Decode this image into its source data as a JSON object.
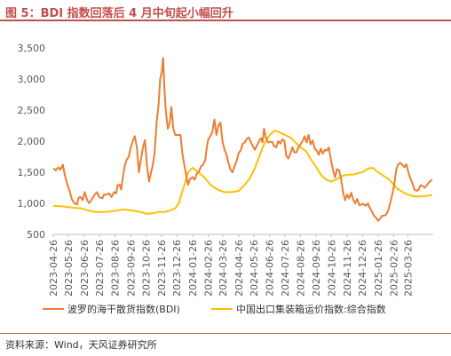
{
  "figure": {
    "title": "图 5：BDI 指数回落后 4 月中旬起小幅回升",
    "source": "资料来源：Wind，天风证券研究所"
  },
  "chart_data": {
    "type": "line",
    "ylim": [
      500,
      3500
    ],
    "yticks": [
      500,
      1000,
      1500,
      2000,
      2500,
      3000,
      3500
    ],
    "ytick_labels": [
      "500",
      "1,000",
      "1,500",
      "2,000",
      "2,500",
      "3,000",
      "3,500"
    ],
    "x_domain": [
      "2023-04-26",
      "2025-05-15"
    ],
    "xtick_labels": [
      "2023-04-26",
      "2023-05-26",
      "2023-06-26",
      "2023-07-26",
      "2023-08-26",
      "2023-09-26",
      "2023-10-26",
      "2023-11-26",
      "2023-12-26",
      "2024-01-26",
      "2024-02-26",
      "2024-03-26",
      "2024-04-26",
      "2024-05-26",
      "2024-06-26",
      "2024-07-26",
      "2024-08-26",
      "2024-09-26",
      "2024-10-26",
      "2024-11-26",
      "2024-12-26",
      "2025-01-26",
      "2025-02-26",
      "2025-03-26"
    ],
    "grid": false,
    "legend_position": "bottom",
    "series": [
      {
        "name": "波罗的海干散货指数(BDI)",
        "color": "#ed7d31",
        "points": [
          [
            "2023-04-26",
            1560
          ],
          [
            "2023-05-01",
            1530
          ],
          [
            "2023-05-06",
            1580
          ],
          [
            "2023-05-10",
            1540
          ],
          [
            "2023-05-15",
            1620
          ],
          [
            "2023-05-19",
            1450
          ],
          [
            "2023-05-24",
            1300
          ],
          [
            "2023-05-29",
            1180
          ],
          [
            "2023-06-02",
            1060
          ],
          [
            "2023-06-07",
            1000
          ],
          [
            "2023-06-12",
            980
          ],
          [
            "2023-06-15",
            1090
          ],
          [
            "2023-06-19",
            1100
          ],
          [
            "2023-06-23",
            1050
          ],
          [
            "2023-06-27",
            1180
          ],
          [
            "2023-07-02",
            1050
          ],
          [
            "2023-07-06",
            1000
          ],
          [
            "2023-07-10",
            1050
          ],
          [
            "2023-07-16",
            1130
          ],
          [
            "2023-07-21",
            1180
          ],
          [
            "2023-07-26",
            1100
          ],
          [
            "2023-08-01",
            1080
          ],
          [
            "2023-08-04",
            1140
          ],
          [
            "2023-08-09",
            1140
          ],
          [
            "2023-08-14",
            1160
          ],
          [
            "2023-08-19",
            1100
          ],
          [
            "2023-08-24",
            1180
          ],
          [
            "2023-08-28",
            1160
          ],
          [
            "2023-08-31",
            1290
          ],
          [
            "2023-09-04",
            1300
          ],
          [
            "2023-09-07",
            1220
          ],
          [
            "2023-09-10",
            1400
          ],
          [
            "2023-09-14",
            1600
          ],
          [
            "2023-09-18",
            1700
          ],
          [
            "2023-09-22",
            1750
          ],
          [
            "2023-09-26",
            1900
          ],
          [
            "2023-09-30",
            2000
          ],
          [
            "2023-10-04",
            2080
          ],
          [
            "2023-10-08",
            1900
          ],
          [
            "2023-10-12",
            1500
          ],
          [
            "2023-10-16",
            1700
          ],
          [
            "2023-10-20",
            1900
          ],
          [
            "2023-10-24",
            2020
          ],
          [
            "2023-10-28",
            1600
          ],
          [
            "2023-11-01",
            1350
          ],
          [
            "2023-11-05",
            1500
          ],
          [
            "2023-11-08",
            1600
          ],
          [
            "2023-11-12",
            1800
          ],
          [
            "2023-11-16",
            2300
          ],
          [
            "2023-11-20",
            2600
          ],
          [
            "2023-11-23",
            3000
          ],
          [
            "2023-11-26",
            3100
          ],
          [
            "2023-11-29",
            3340
          ],
          [
            "2023-12-01",
            2900
          ],
          [
            "2023-12-04",
            2500
          ],
          [
            "2023-12-08",
            2200
          ],
          [
            "2023-12-12",
            2300
          ],
          [
            "2023-12-15",
            2550
          ],
          [
            "2023-12-19",
            2200
          ],
          [
            "2023-12-23",
            2100
          ],
          [
            "2023-12-29",
            2100
          ],
          [
            "2024-01-02",
            2100
          ],
          [
            "2024-01-06",
            1800
          ],
          [
            "2024-01-11",
            1550
          ],
          [
            "2024-01-17",
            1300
          ],
          [
            "2024-01-21",
            1390
          ],
          [
            "2024-01-26",
            1420
          ],
          [
            "2024-01-30",
            1380
          ],
          [
            "2024-02-03",
            1470
          ],
          [
            "2024-02-08",
            1520
          ],
          [
            "2024-02-12",
            1600
          ],
          [
            "2024-02-16",
            1620
          ],
          [
            "2024-02-20",
            1700
          ],
          [
            "2024-02-23",
            1900
          ],
          [
            "2024-02-26",
            2030
          ],
          [
            "2024-03-01",
            2080
          ],
          [
            "2024-03-05",
            2150
          ],
          [
            "2024-03-09",
            2350
          ],
          [
            "2024-03-13",
            2100
          ],
          [
            "2024-03-17",
            2250
          ],
          [
            "2024-03-21",
            2300
          ],
          [
            "2024-03-25",
            2000
          ],
          [
            "2024-03-29",
            1860
          ],
          [
            "2024-04-02",
            1780
          ],
          [
            "2024-04-06",
            1640
          ],
          [
            "2024-04-10",
            1540
          ],
          [
            "2024-04-14",
            1500
          ],
          [
            "2024-04-18",
            1600
          ],
          [
            "2024-04-22",
            1680
          ],
          [
            "2024-04-26",
            1810
          ],
          [
            "2024-04-30",
            1850
          ],
          [
            "2024-05-04",
            1960
          ],
          [
            "2024-05-08",
            1980
          ],
          [
            "2024-05-12",
            2040
          ],
          [
            "2024-05-16",
            2060
          ],
          [
            "2024-05-20",
            1980
          ],
          [
            "2024-05-24",
            1920
          ],
          [
            "2024-05-28",
            1860
          ],
          [
            "2024-06-01",
            1930
          ],
          [
            "2024-06-05",
            2000
          ],
          [
            "2024-06-09",
            2050
          ],
          [
            "2024-06-12",
            1980
          ],
          [
            "2024-06-15",
            2200
          ],
          [
            "2024-06-19",
            2050
          ],
          [
            "2024-06-23",
            1980
          ],
          [
            "2024-06-27",
            1990
          ],
          [
            "2024-07-01",
            1990
          ],
          [
            "2024-07-05",
            1920
          ],
          [
            "2024-07-09",
            1900
          ],
          [
            "2024-07-13",
            2000
          ],
          [
            "2024-07-17",
            1960
          ],
          [
            "2024-07-21",
            2030
          ],
          [
            "2024-07-25",
            2010
          ],
          [
            "2024-07-29",
            1760
          ],
          [
            "2024-08-02",
            1720
          ],
          [
            "2024-08-06",
            1800
          ],
          [
            "2024-08-10",
            1900
          ],
          [
            "2024-08-14",
            1820
          ],
          [
            "2024-08-18",
            1820
          ],
          [
            "2024-08-22",
            1900
          ],
          [
            "2024-08-26",
            1950
          ],
          [
            "2024-08-30",
            2000
          ],
          [
            "2024-09-03",
            2080
          ],
          [
            "2024-09-07",
            1980
          ],
          [
            "2024-09-11",
            2100
          ],
          [
            "2024-09-15",
            1950
          ],
          [
            "2024-09-19",
            2010
          ],
          [
            "2024-09-23",
            1880
          ],
          [
            "2024-09-27",
            1850
          ],
          [
            "2024-10-01",
            1780
          ],
          [
            "2024-10-05",
            1880
          ],
          [
            "2024-10-09",
            1800
          ],
          [
            "2024-10-13",
            1860
          ],
          [
            "2024-10-17",
            1850
          ],
          [
            "2024-10-21",
            1900
          ],
          [
            "2024-10-25",
            1700
          ],
          [
            "2024-10-29",
            1540
          ],
          [
            "2024-11-02",
            1420
          ],
          [
            "2024-11-06",
            1550
          ],
          [
            "2024-11-10",
            1530
          ],
          [
            "2024-11-14",
            1400
          ],
          [
            "2024-11-18",
            1180
          ],
          [
            "2024-11-22",
            1050
          ],
          [
            "2024-11-26",
            1140
          ],
          [
            "2024-11-30",
            1080
          ],
          [
            "2024-12-04",
            1170
          ],
          [
            "2024-12-08",
            1060
          ],
          [
            "2024-12-12",
            1000
          ],
          [
            "2024-12-16",
            1070
          ],
          [
            "2024-12-20",
            970
          ],
          [
            "2024-12-24",
            980
          ],
          [
            "2024-12-28",
            990
          ],
          [
            "2025-01-02",
            960
          ],
          [
            "2025-01-06",
            1000
          ],
          [
            "2025-01-10",
            920
          ],
          [
            "2025-01-14",
            870
          ],
          [
            "2025-01-18",
            800
          ],
          [
            "2025-01-22",
            770
          ],
          [
            "2025-01-26",
            720
          ],
          [
            "2025-01-30",
            750
          ],
          [
            "2025-02-03",
            800
          ],
          [
            "2025-02-07",
            800
          ],
          [
            "2025-02-11",
            820
          ],
          [
            "2025-02-15",
            880
          ],
          [
            "2025-02-19",
            1000
          ],
          [
            "2025-02-23",
            1140
          ],
          [
            "2025-02-27",
            1300
          ],
          [
            "2025-03-03",
            1540
          ],
          [
            "2025-03-07",
            1630
          ],
          [
            "2025-03-11",
            1650
          ],
          [
            "2025-03-15",
            1620
          ],
          [
            "2025-03-19",
            1580
          ],
          [
            "2025-03-23",
            1630
          ],
          [
            "2025-03-27",
            1500
          ],
          [
            "2025-03-31",
            1400
          ],
          [
            "2025-04-04",
            1320
          ],
          [
            "2025-04-08",
            1220
          ],
          [
            "2025-04-12",
            1200
          ],
          [
            "2025-04-16",
            1220
          ],
          [
            "2025-04-20",
            1290
          ],
          [
            "2025-04-24",
            1280
          ],
          [
            "2025-04-28",
            1250
          ],
          [
            "2025-05-03",
            1300
          ],
          [
            "2025-05-08",
            1350
          ],
          [
            "2025-05-13",
            1380
          ]
        ]
      },
      {
        "name": "中国出口集装箱运价指数:综合指数",
        "color": "#ffc000",
        "points": [
          [
            "2023-04-26",
            960
          ],
          [
            "2023-05-15",
            950
          ],
          [
            "2023-06-02",
            930
          ],
          [
            "2023-06-19",
            920
          ],
          [
            "2023-07-06",
            880
          ],
          [
            "2023-07-21",
            860
          ],
          [
            "2023-08-04",
            860
          ],
          [
            "2023-08-19",
            870
          ],
          [
            "2023-09-01",
            890
          ],
          [
            "2023-09-15",
            900
          ],
          [
            "2023-10-01",
            880
          ],
          [
            "2023-10-16",
            860
          ],
          [
            "2023-10-28",
            830
          ],
          [
            "2023-11-08",
            840
          ],
          [
            "2023-11-20",
            860
          ],
          [
            "2023-12-01",
            860
          ],
          [
            "2023-12-12",
            880
          ],
          [
            "2023-12-23",
            920
          ],
          [
            "2023-12-30",
            1000
          ],
          [
            "2024-01-04",
            1150
          ],
          [
            "2024-01-10",
            1300
          ],
          [
            "2024-01-17",
            1500
          ],
          [
            "2024-01-26",
            1570
          ],
          [
            "2024-02-06",
            1500
          ],
          [
            "2024-02-18",
            1420
          ],
          [
            "2024-03-01",
            1300
          ],
          [
            "2024-03-15",
            1220
          ],
          [
            "2024-03-29",
            1180
          ],
          [
            "2024-04-12",
            1180
          ],
          [
            "2024-04-26",
            1200
          ],
          [
            "2024-05-06",
            1280
          ],
          [
            "2024-05-16",
            1380
          ],
          [
            "2024-05-26",
            1530
          ],
          [
            "2024-06-05",
            1740
          ],
          [
            "2024-06-15",
            1950
          ],
          [
            "2024-06-26",
            2100
          ],
          [
            "2024-07-06",
            2170
          ],
          [
            "2024-07-16",
            2140
          ],
          [
            "2024-07-26",
            2100
          ],
          [
            "2024-08-06",
            2060
          ],
          [
            "2024-08-16",
            1980
          ],
          [
            "2024-08-26",
            1900
          ],
          [
            "2024-09-06",
            1840
          ],
          [
            "2024-09-16",
            1700
          ],
          [
            "2024-09-26",
            1580
          ],
          [
            "2024-10-06",
            1450
          ],
          [
            "2024-10-16",
            1380
          ],
          [
            "2024-10-26",
            1350
          ],
          [
            "2024-11-06",
            1390
          ],
          [
            "2024-11-16",
            1440
          ],
          [
            "2024-11-26",
            1460
          ],
          [
            "2024-12-06",
            1460
          ],
          [
            "2024-12-16",
            1480
          ],
          [
            "2024-12-26",
            1500
          ],
          [
            "2025-01-06",
            1560
          ],
          [
            "2025-01-16",
            1570
          ],
          [
            "2025-01-26",
            1500
          ],
          [
            "2025-02-06",
            1440
          ],
          [
            "2025-02-16",
            1390
          ],
          [
            "2025-02-26",
            1300
          ],
          [
            "2025-03-06",
            1230
          ],
          [
            "2025-03-16",
            1180
          ],
          [
            "2025-03-26",
            1140
          ],
          [
            "2025-04-08",
            1110
          ],
          [
            "2025-04-20",
            1110
          ],
          [
            "2025-05-01",
            1120
          ],
          [
            "2025-05-13",
            1130
          ]
        ]
      }
    ]
  }
}
